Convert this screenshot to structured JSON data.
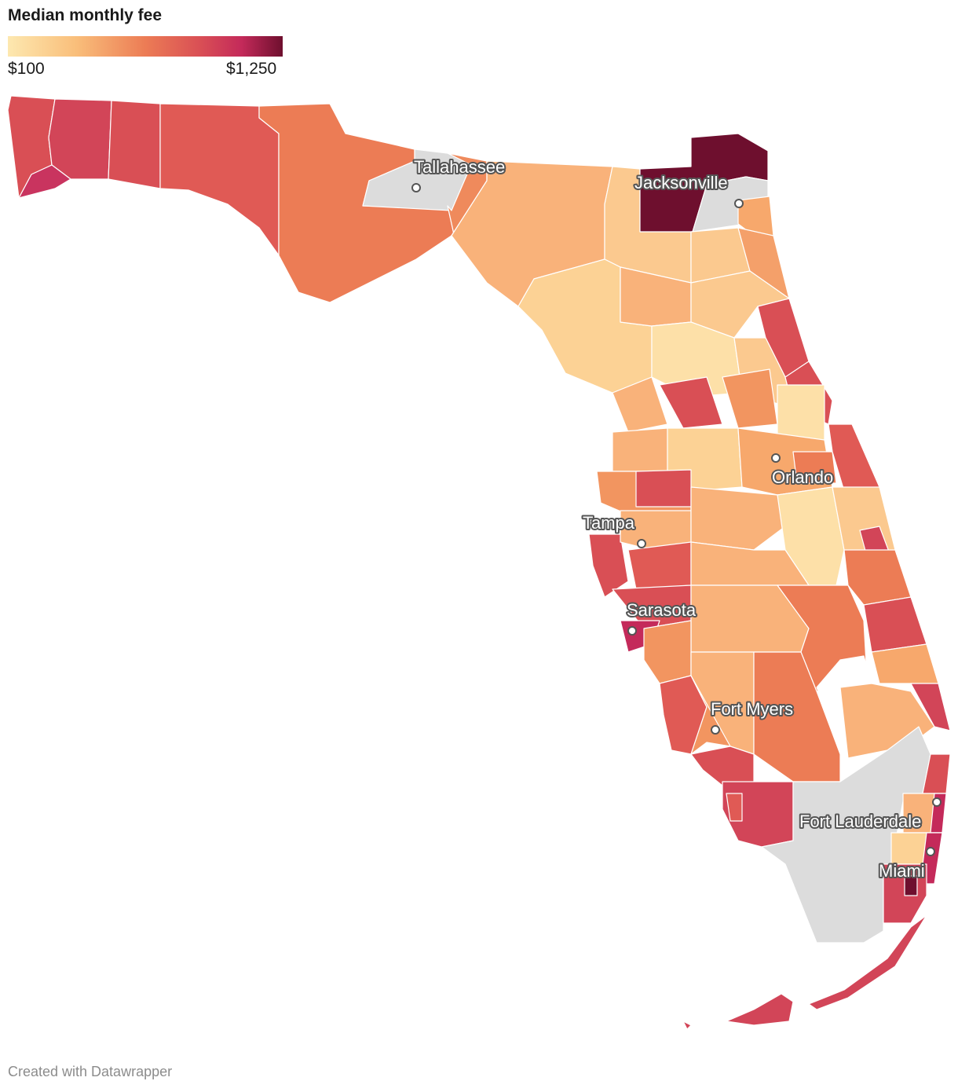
{
  "legend": {
    "title": "Median monthly fee",
    "min_label": "$100",
    "max_label": "$1,250",
    "gradient_colors": [
      "#fde8b0",
      "#f9be7a",
      "#ec7c55",
      "#d94f55",
      "#c42a5a",
      "#6e0f2e"
    ]
  },
  "map": {
    "no_data_color": "#dcdcdc",
    "border_color": "#ffffff",
    "cities": [
      {
        "name": "Tallahassee"
      },
      {
        "name": "Jacksonville"
      },
      {
        "name": "Orlando"
      },
      {
        "name": "Tampa"
      },
      {
        "name": "Sarasota"
      },
      {
        "name": "Fort Myers"
      },
      {
        "name": "Fort Lauderdale"
      },
      {
        "name": "Miami"
      }
    ]
  },
  "footer": {
    "credit": "Created with Datawrapper"
  }
}
